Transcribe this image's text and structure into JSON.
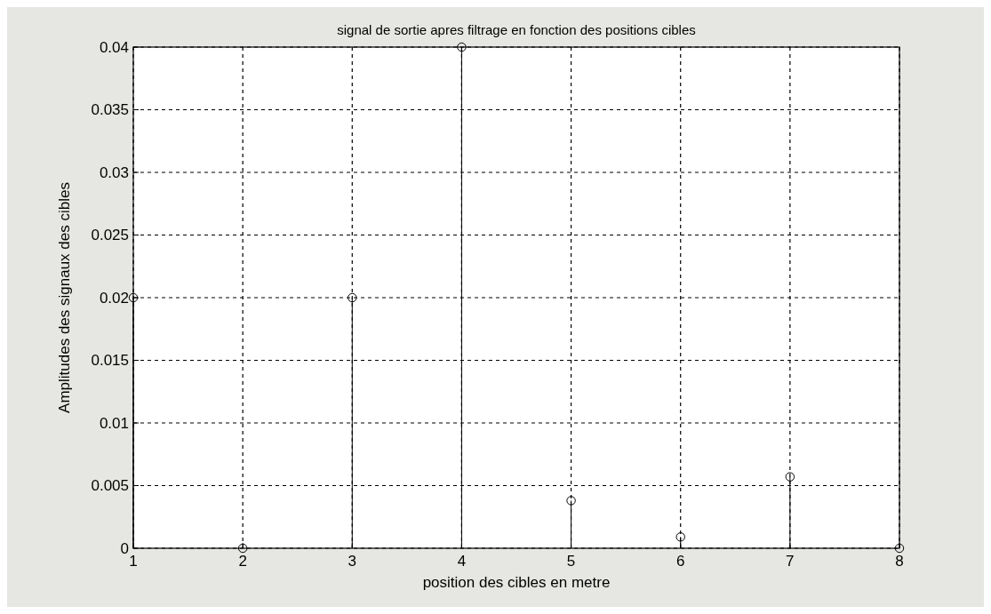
{
  "chart_data": {
    "type": "lollipop",
    "title": "signal de sortie apres filtrage en fonction des positions cibles",
    "xlabel": "position  des cibles en metre",
    "ylabel": "Amplitudes des signaux des cibles",
    "x": [
      1,
      2,
      3,
      4,
      5,
      6,
      7,
      8
    ],
    "series": [
      {
        "color": "#000000",
        "values": [
          0.02,
          0,
          0.02,
          0.04,
          0.0038,
          0.0009,
          0.0057,
          0
        ]
      }
    ],
    "xlim": [
      1,
      8
    ],
    "xticks": [
      1,
      2,
      3,
      4,
      5,
      6,
      7,
      8
    ],
    "ylim": [
      0,
      0.04
    ],
    "yticks": [
      0,
      0.005,
      0.01,
      0.015,
      0.02,
      0.025,
      0.03,
      0.035,
      0.04
    ],
    "grid": true,
    "marker": "circle"
  }
}
